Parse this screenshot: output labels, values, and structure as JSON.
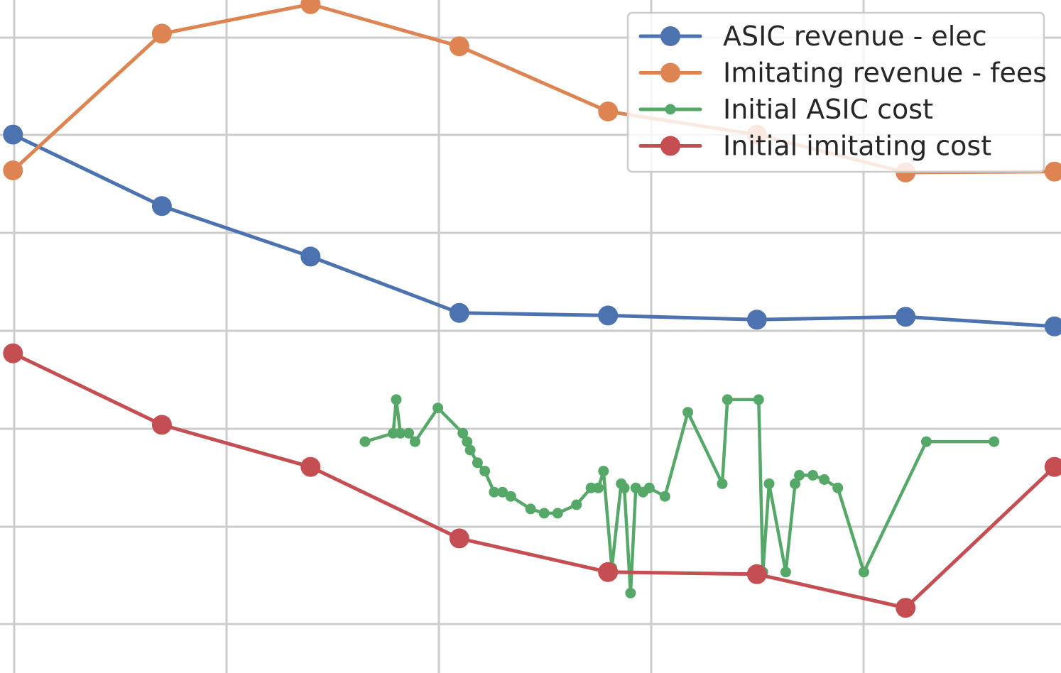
{
  "chart_data": {
    "type": "line",
    "title": "",
    "xlabel": "",
    "ylabel": "",
    "grid": true,
    "xlim": [
      -0.0125,
      1.0063
    ],
    "ylim": [
      -0.05,
      1.55
    ],
    "legend_position": "top-right",
    "series": [
      {
        "name": "ASIC revenue - elec",
        "color": "#4c72b0",
        "marker": "large",
        "x": [
          0.0,
          0.1429,
          0.2857,
          0.4286,
          0.5714,
          0.7143,
          0.8571,
          1.0
        ],
        "y": [
          1.23,
          1.06,
          0.94,
          0.806,
          0.8,
          0.79,
          0.797,
          0.774
        ]
      },
      {
        "name": "Imitating revenue - fees",
        "color": "#dd8452",
        "marker": "large",
        "x": [
          0.0,
          0.1429,
          0.2857,
          0.4286,
          0.5714,
          0.7143,
          0.8571,
          1.0
        ],
        "y": [
          1.145,
          1.47,
          1.54,
          1.44,
          1.285,
          1.23,
          1.14,
          1.142
        ]
      },
      {
        "name": "Initial ASIC cost",
        "color": "#55a868",
        "marker": "small",
        "x": [
          0.338,
          0.365,
          0.368,
          0.372,
          0.38,
          0.386,
          0.408,
          0.432,
          0.436,
          0.439,
          0.446,
          0.453,
          0.462,
          0.47,
          0.478,
          0.497,
          0.51,
          0.523,
          0.541,
          0.555,
          0.562,
          0.567,
          0.575,
          0.584,
          0.587,
          0.593,
          0.598,
          0.605,
          0.611,
          0.626,
          0.648,
          0.681,
          0.686,
          0.716,
          0.72,
          0.726,
          0.742,
          0.751,
          0.755,
          0.768,
          0.779,
          0.792,
          0.817,
          0.877,
          0.942
        ],
        "y": [
          0.5,
          0.52,
          0.6,
          0.52,
          0.52,
          0.5,
          0.58,
          0.52,
          0.5,
          0.48,
          0.45,
          0.43,
          0.38,
          0.38,
          0.37,
          0.34,
          0.33,
          0.33,
          0.35,
          0.39,
          0.39,
          0.43,
          0.2,
          0.4,
          0.39,
          0.14,
          0.39,
          0.38,
          0.39,
          0.37,
          0.57,
          0.4,
          0.6,
          0.6,
          0.19,
          0.4,
          0.19,
          0.4,
          0.42,
          0.42,
          0.41,
          0.39,
          0.19,
          0.5,
          0.5
        ]
      },
      {
        "name": "Initial imitating cost",
        "color": "#c44e52",
        "marker": "large",
        "x": [
          0.0,
          0.1429,
          0.2857,
          0.4286,
          0.5714,
          0.7143,
          0.8571,
          1.0
        ],
        "y": [
          0.71,
          0.54,
          0.44,
          0.27,
          0.19,
          0.185,
          0.105,
          0.44
        ]
      }
    ]
  }
}
